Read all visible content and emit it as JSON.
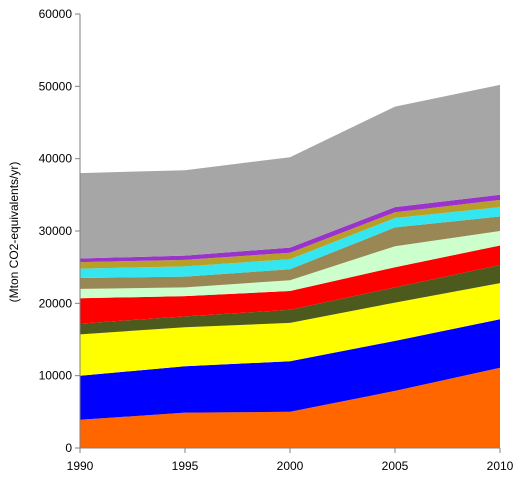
{
  "chart_data": {
    "type": "area",
    "stacked": true,
    "title": "",
    "xlabel": "",
    "ylabel": "(Mton CO2-equivalents/yr)",
    "x": [
      1990,
      1995,
      2000,
      2005,
      2010
    ],
    "x_tick_labels": [
      "1990",
      "1995",
      "2000",
      "2005",
      "2010"
    ],
    "ylim": [
      0,
      60000
    ],
    "y_ticks": [
      0,
      10000,
      20000,
      30000,
      40000,
      50000,
      60000
    ],
    "y_tick_labels": [
      "0",
      "10000",
      "20000",
      "30000",
      "40000",
      "50000",
      "60000"
    ],
    "grid": false,
    "legend": "none",
    "series": [
      {
        "color": "#ff6600",
        "values": [
          3900,
          4900,
          5000,
          7900,
          11100
        ]
      },
      {
        "color": "#0000ff",
        "values": [
          6100,
          6400,
          7000,
          6900,
          6700
        ]
      },
      {
        "color": "#ffff00",
        "values": [
          5700,
          5400,
          5300,
          5300,
          5000
        ]
      },
      {
        "color": "#4d5a1e",
        "values": [
          1500,
          1500,
          1800,
          2100,
          2500
        ]
      },
      {
        "color": "#ff0000",
        "values": [
          3500,
          2800,
          2600,
          2800,
          2700
        ]
      },
      {
        "color": "#ccffcc",
        "values": [
          1300,
          1200,
          1500,
          2900,
          2000
        ]
      },
      {
        "color": "#998855",
        "values": [
          1500,
          1500,
          1500,
          2600,
          2000
        ]
      },
      {
        "color": "#33e6f0",
        "values": [
          1300,
          1400,
          1400,
          1300,
          1300
        ]
      },
      {
        "color": "#b8a028",
        "values": [
          900,
          900,
          900,
          800,
          1000
        ]
      },
      {
        "color": "#9933cc",
        "values": [
          500,
          600,
          700,
          700,
          700
        ]
      },
      {
        "color": "#a6a6a6",
        "values": [
          11800,
          11800,
          12500,
          13900,
          15200
        ]
      }
    ]
  }
}
